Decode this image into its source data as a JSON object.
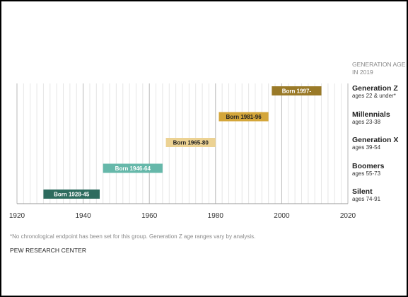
{
  "chart_data": {
    "type": "bar",
    "orientation": "horizontal-range",
    "x_ticks": [
      1920,
      1940,
      1960,
      1980,
      2000,
      2020
    ],
    "xlim": [
      1920,
      2020
    ],
    "grid": "vertical minor every 2 years, major every 20 years",
    "legend_title": "GENERATION AGE\nIN 2019",
    "series": [
      {
        "name": "Generation Z",
        "ages": "ages 22 & under*",
        "start": 1997,
        "end": 2012,
        "label": "Born 1997-",
        "color": "#9a7a28"
      },
      {
        "name": "Millennials",
        "ages": "ages 23-38",
        "start": 1981,
        "end": 1996,
        "label": "Born 1981-96",
        "color": "#d4a63a"
      },
      {
        "name": "Generation X",
        "ages": "ages 39-54",
        "start": 1965,
        "end": 1980,
        "label": "Born 1965-80",
        "color": "#ecd293"
      },
      {
        "name": "Boomers",
        "ages": "ages 55-73",
        "start": 1946,
        "end": 1964,
        "label": "Born 1946-64",
        "color": "#66b8aa"
      },
      {
        "name": "Silent",
        "ages": "ages 74-91",
        "start": 1928,
        "end": 1945,
        "label": "Born 1928-45",
        "color": "#2d6b5e"
      }
    ]
  },
  "footnote": "*No chronological endpoint has been set for this group. Generation Z age ranges vary by analysis.",
  "source": "PEW RESEARCH CENTER"
}
